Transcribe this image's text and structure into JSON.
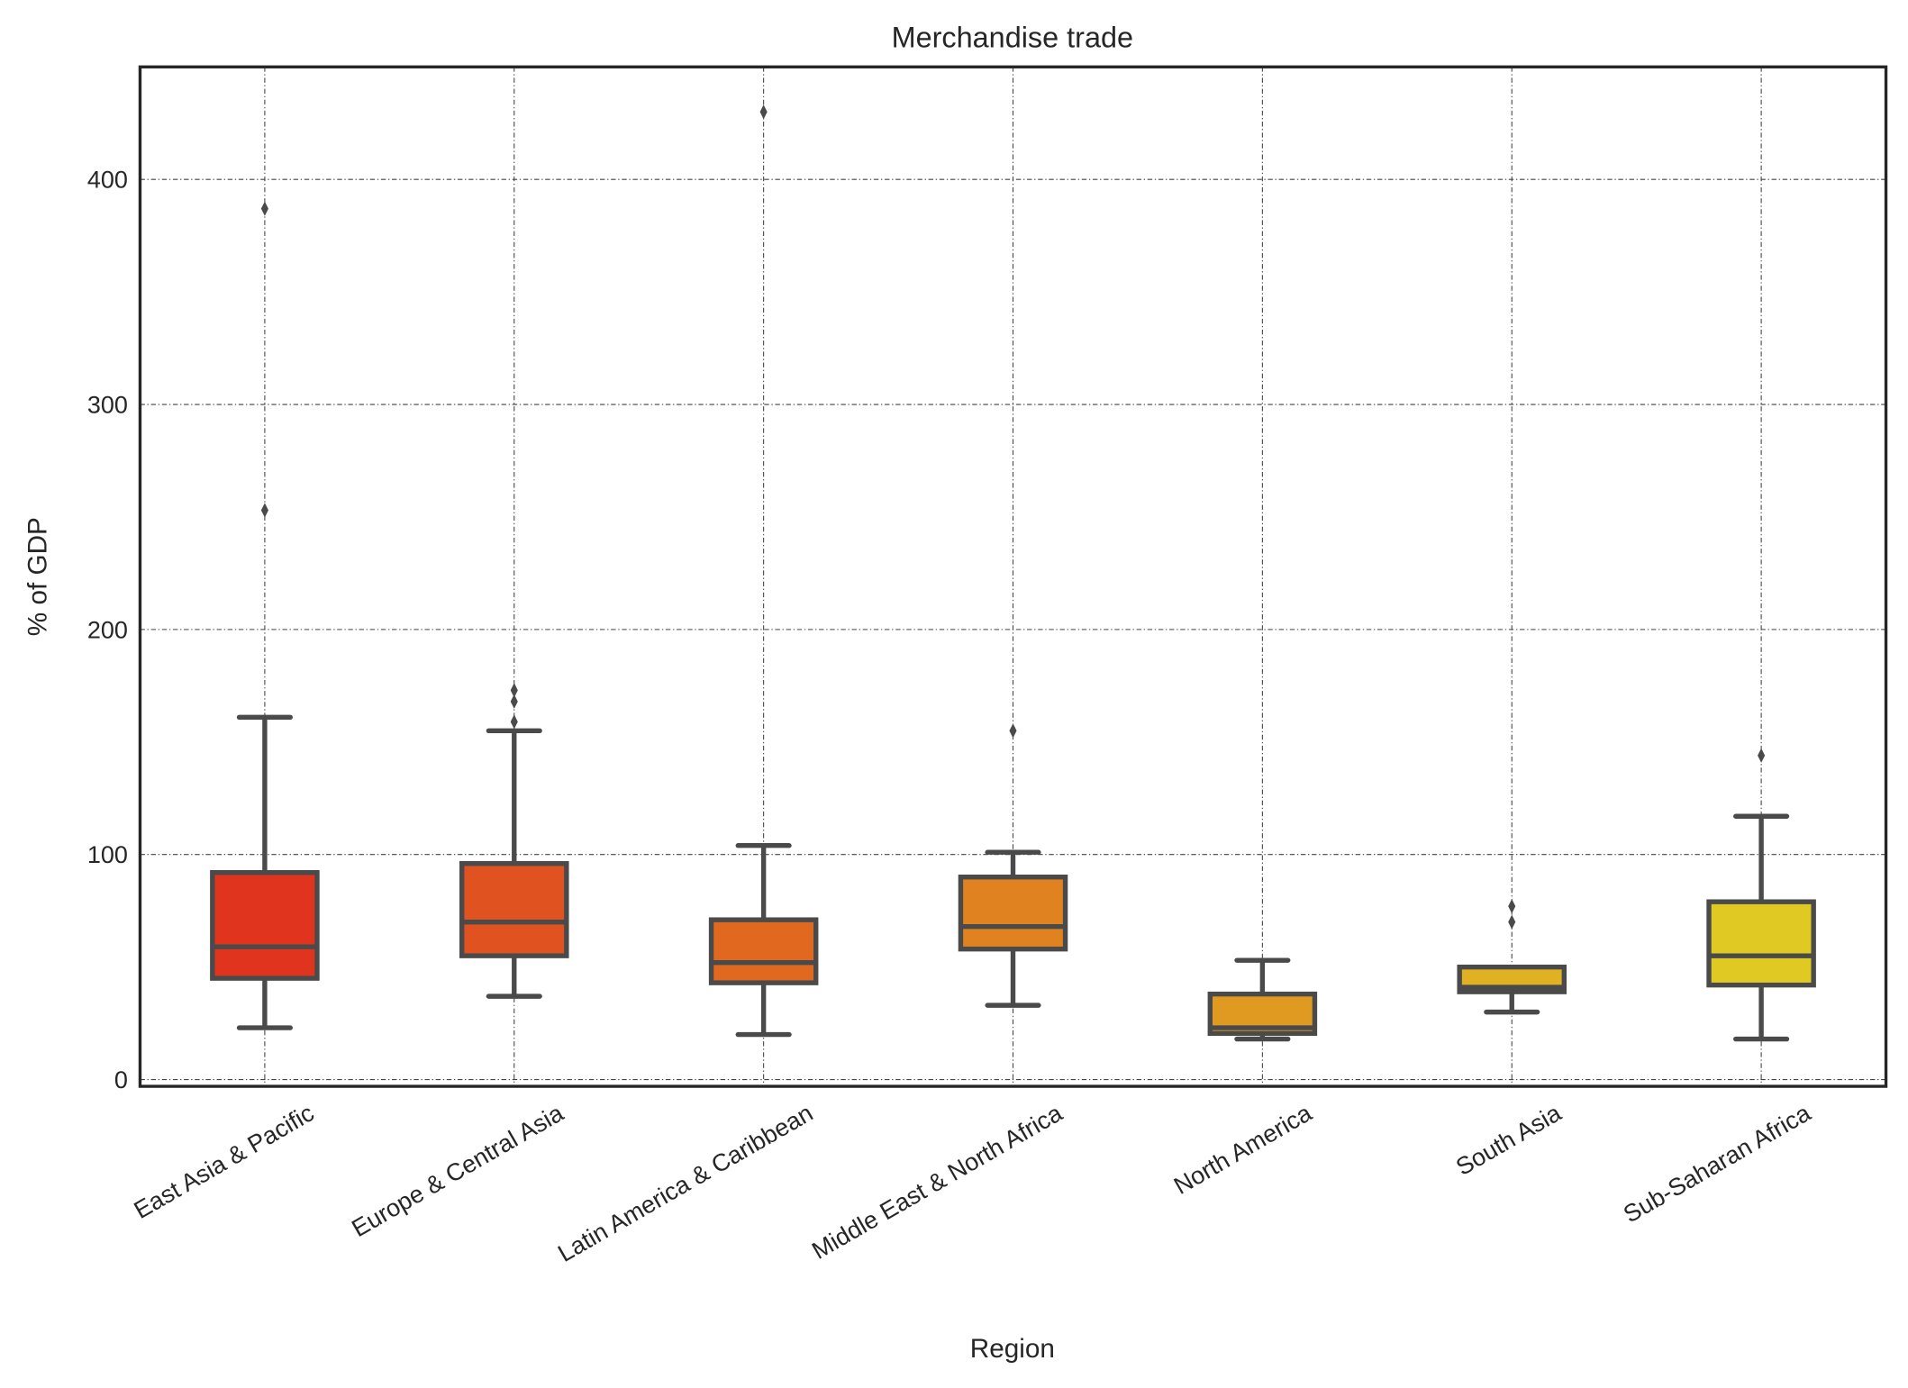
{
  "chart_data": {
    "type": "box",
    "title": "Merchandise trade",
    "xlabel": "Region",
    "ylabel": "% of GDP",
    "ylim": [
      -3,
      450
    ],
    "yticks": [
      0,
      100,
      200,
      300,
      400
    ],
    "grid": true,
    "categories": [
      "East Asia & Pacific",
      "Europe & Central Asia",
      "Latin America & Caribbean",
      "Middle East & North Africa",
      "North America",
      "South Asia",
      "Sub-Saharan Africa"
    ],
    "colors": [
      "#e0341f",
      "#e05220",
      "#e0691f",
      "#e08220",
      "#e09a22",
      "#e0b122",
      "#e0c922"
    ],
    "boxes": [
      {
        "whislo": 23,
        "q1": 45,
        "med": 59,
        "q3": 92,
        "whishi": 161,
        "fliers": [
          253,
          387
        ]
      },
      {
        "whislo": 37,
        "q1": 55,
        "med": 70,
        "q3": 96,
        "whishi": 155,
        "fliers": [
          159,
          168,
          173
        ]
      },
      {
        "whislo": 20,
        "q1": 43,
        "med": 52,
        "q3": 71,
        "whishi": 104,
        "fliers": [
          430
        ]
      },
      {
        "whislo": 33,
        "q1": 58,
        "med": 68,
        "q3": 90,
        "whishi": 101,
        "fliers": [
          155
        ]
      },
      {
        "whislo": 18,
        "q1": 20.5,
        "med": 23,
        "q3": 38,
        "whishi": 53,
        "fliers": []
      },
      {
        "whislo": 30,
        "q1": 39,
        "med": 41,
        "q3": 50,
        "whishi": 50,
        "fliers": [
          70,
          77
        ]
      },
      {
        "whislo": 18,
        "q1": 42,
        "med": 55,
        "q3": 79,
        "whishi": 117,
        "fliers": [
          144
        ]
      }
    ]
  }
}
